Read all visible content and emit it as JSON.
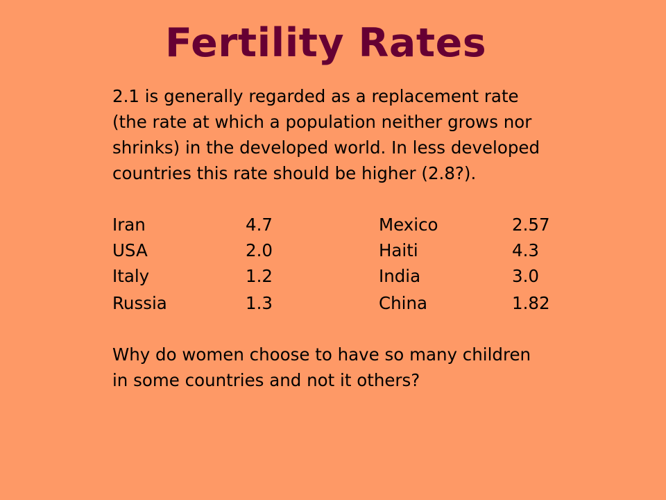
{
  "slide": {
    "title": "Fertility Rates",
    "intro_lines": [
      "2.1 is generally regarded as a replacement rate",
      "(the rate at which a population neither grows nor",
      "shrinks) in the developed world. In less developed",
      "countries this rate should be higher (2.8?)."
    ],
    "rates": [
      {
        "country_a": "Iran",
        "rate_a": "4.7",
        "country_b": "Mexico",
        "rate_b": "2.57"
      },
      {
        "country_a": "USA",
        "rate_a": "2.0",
        "country_b": "Haiti",
        "rate_b": "4.3"
      },
      {
        "country_a": "Italy",
        "rate_a": "1.2",
        "country_b": "India",
        "rate_b": "3.0"
      },
      {
        "country_a": "Russia",
        "rate_a": "1.3",
        "country_b": "China",
        "rate_b": "1.82"
      }
    ],
    "question_lines": [
      "Why do women choose to have so many children",
      "in some countries and not it others?"
    ]
  },
  "colors": {
    "background": "#fe9966",
    "title": "#660033",
    "text": "#000000"
  }
}
